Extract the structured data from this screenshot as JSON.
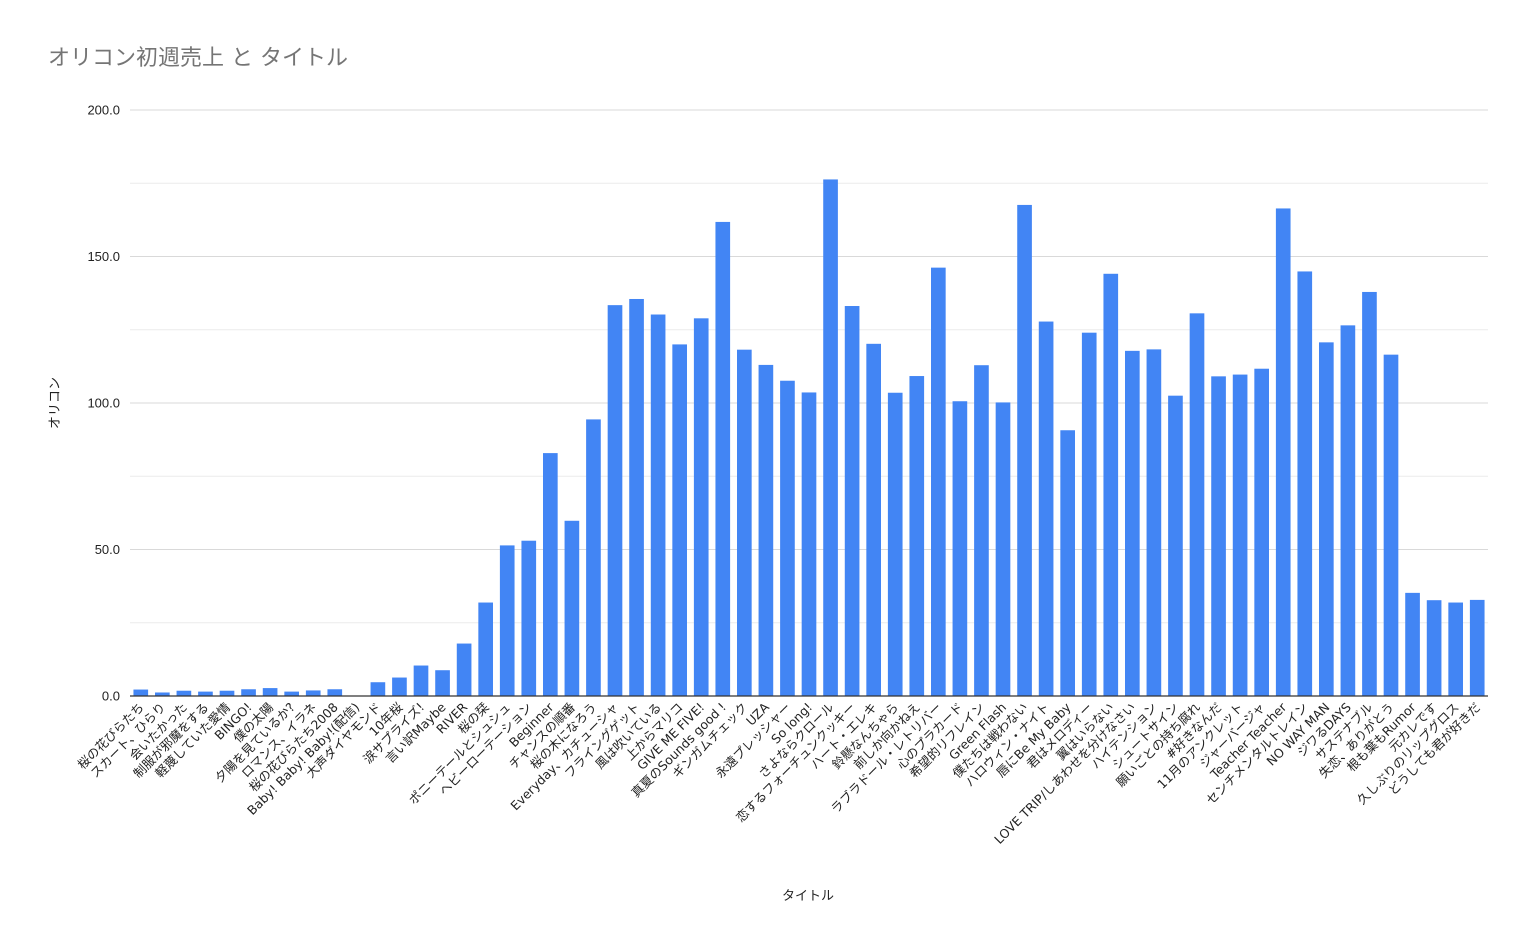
{
  "chart_data": {
    "type": "bar",
    "title": "オリコン初週売上 と タイトル",
    "xlabel": "タイトル",
    "ylabel": "オリコン",
    "ylim": [
      0,
      200
    ],
    "yticks": [
      "0.0",
      "50.0",
      "100.0",
      "150.0",
      "200.0"
    ],
    "grid": true,
    "legend": "none",
    "bar_color": "#4285F4",
    "categories": [
      "桜の花びらたち",
      "スカート、ひらり",
      "会いたかった",
      "制服が邪魔をする",
      "軽蔑していた愛情",
      "BINGO!",
      "僕の太陽",
      "夕陽を見ているか?",
      "ロマンス、イラネ",
      "桜の花びらたち2008",
      "Baby! Baby! Baby!(配信)",
      "大声ダイヤモンド",
      "10年桜",
      "涙サプライズ!",
      "言い訳Maybe",
      "RIVER",
      "桜の栞",
      "ポニーテールとシュシュ",
      "ヘビーローテーション",
      "Beginner",
      "チャンスの順番",
      "桜の木になろう",
      "Everyday、カチューシャ",
      "フライングゲット",
      "風は吹いている",
      "上からマリコ",
      "GIVE ME FIVE!",
      "真夏のSounds good !",
      "ギンガムチェック",
      "UZA",
      "永遠プレッシャー",
      "So long!",
      "さよならクロール",
      "恋するフォーチュンクッキー",
      "ハート・エレキ",
      "鈴懸なんちゃら",
      "前しか向かねえ",
      "ラブラドール・レトリバー",
      "心のプラカード",
      "希望的リフレイン",
      "Green Flash",
      "僕たちは戦わない",
      "ハロウィン・ナイト",
      "唇にBe My Baby",
      "君はメロディー",
      "翼はいらない",
      "LOVE TRIP/しあわせを分けなさい",
      "ハイテンション",
      "シュートサイン",
      "願いごとの持ち腐れ",
      "#好きなんだ",
      "11月のアンクレット",
      "ジャーバージャ",
      "Teacher Teacher",
      "センチメンタルトレイン",
      "NO WAY MAN",
      "ジワるDAYS",
      "サステナブル",
      "失恋、ありがとう",
      "根も葉もRumor",
      "元カレです",
      "久しぶりのリップグロス",
      "どうしても君が好きだ"
    ],
    "values": [
      2.2,
      1.2,
      1.8,
      1.5,
      1.8,
      2.3,
      2.7,
      1.5,
      1.9,
      2.3,
      0,
      4.7,
      6.3,
      10.4,
      8.8,
      17.9,
      31.9,
      51.4,
      53.0,
      82.9,
      59.8,
      94.4,
      133.4,
      135.5,
      130.2,
      120.0,
      128.9,
      161.8,
      118.2,
      113.0,
      107.6,
      103.6,
      176.3,
      133.1,
      120.2,
      103.5,
      109.2,
      146.2,
      100.6,
      112.9,
      100.2,
      167.6,
      127.8,
      90.7,
      124.0,
      144.1,
      117.8,
      118.3,
      102.5,
      130.6,
      109.1,
      109.7,
      111.7,
      166.4,
      144.9,
      120.7,
      126.5,
      137.9,
      116.5,
      35.2,
      32.7,
      31.9,
      32.8
    ]
  }
}
